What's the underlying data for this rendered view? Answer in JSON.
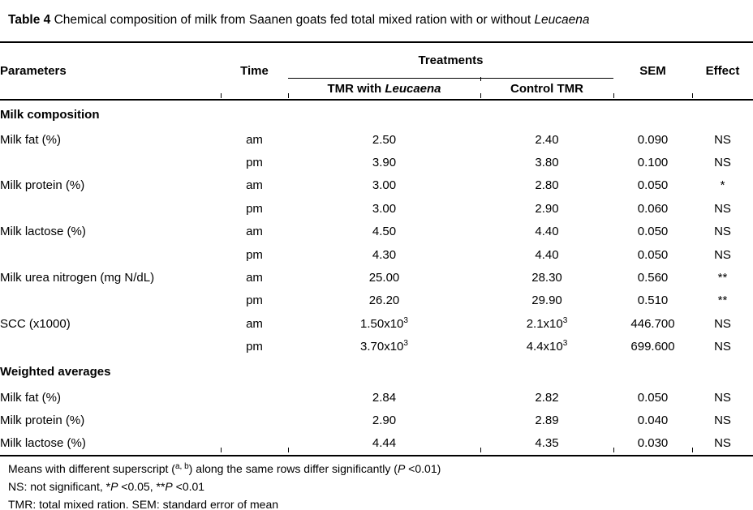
{
  "title": {
    "segments": [
      {
        "t": "Table 4",
        "s": "b"
      },
      {
        "t": " Chemical composition of milk from Saanen goats fed total mixed ration with or without ",
        "s": ""
      },
      {
        "t": "Leucaena",
        "s": "i"
      }
    ]
  },
  "table": {
    "header": {
      "parameters": "Parameters",
      "time": "Time",
      "treatments": "Treatments",
      "treatment1_segments": [
        {
          "t": "TMR with ",
          "s": ""
        },
        {
          "t": "Leucaena",
          "s": "i"
        }
      ],
      "treatment2": "Control TMR",
      "sem": "SEM",
      "effect": "Effect"
    },
    "rows": [
      {
        "type": "section",
        "parameter": "Milk composition"
      },
      {
        "type": "data",
        "parameter": "Milk fat (%)",
        "time": "am",
        "tmr": "2.50",
        "tmr_sup": "",
        "control": "2.40",
        "control_sup": "",
        "sem": "0.090",
        "effect": "NS"
      },
      {
        "type": "data",
        "parameter": "",
        "time": "pm",
        "tmr": "3.90",
        "tmr_sup": "",
        "control": "3.80",
        "control_sup": "",
        "sem": "0.100",
        "effect": "NS"
      },
      {
        "type": "data",
        "parameter": "Milk protein (%)",
        "time": "am",
        "tmr": "3.00",
        "tmr_sup": "",
        "control": "2.80",
        "control_sup": "",
        "sem": "0.050",
        "effect": "*"
      },
      {
        "type": "data",
        "parameter": "",
        "time": "pm",
        "tmr": "3.00",
        "tmr_sup": "",
        "control": "2.90",
        "control_sup": "",
        "sem": "0.060",
        "effect": "NS"
      },
      {
        "type": "data",
        "parameter": "Milk lactose (%)",
        "time": "am",
        "tmr": "4.50",
        "tmr_sup": "",
        "control": "4.40",
        "control_sup": "",
        "sem": "0.050",
        "effect": "NS"
      },
      {
        "type": "data",
        "parameter": "",
        "time": "pm",
        "tmr": "4.30",
        "tmr_sup": "",
        "control": "4.40",
        "control_sup": "",
        "sem": "0.050",
        "effect": "NS"
      },
      {
        "type": "data",
        "parameter": "Milk urea nitrogen (mg N/dL)",
        "time": "am",
        "tmr": "25.00",
        "tmr_sup": "",
        "control": "28.30",
        "control_sup": "",
        "sem": "0.560",
        "effect": "**"
      },
      {
        "type": "data",
        "parameter": "",
        "time": "pm",
        "tmr": "26.20",
        "tmr_sup": "",
        "control": "29.90",
        "control_sup": "",
        "sem": "0.510",
        "effect": "**"
      },
      {
        "type": "data",
        "parameter": "SCC (x1000)",
        "time": "am",
        "tmr": "1.50x10",
        "tmr_sup": "3",
        "control": "2.1x10",
        "control_sup": "3",
        "sem": "446.700",
        "effect": "NS"
      },
      {
        "type": "data",
        "parameter": "",
        "time": "pm",
        "tmr": "3.70x10",
        "tmr_sup": "3",
        "control": "4.4x10",
        "control_sup": "3",
        "sem": "699.600",
        "effect": "NS"
      },
      {
        "type": "section",
        "parameter": "Weighted averages"
      },
      {
        "type": "data",
        "parameter": "Milk fat (%)",
        "time": "",
        "tmr": "2.84",
        "tmr_sup": "",
        "control": "2.82",
        "control_sup": "",
        "sem": "0.050",
        "effect": "NS"
      },
      {
        "type": "data",
        "parameter": "Milk protein (%)",
        "time": "",
        "tmr": "2.90",
        "tmr_sup": "",
        "control": "2.89",
        "control_sup": "",
        "sem": "0.040",
        "effect": "NS"
      },
      {
        "type": "data",
        "parameter": "Milk lactose (%)",
        "time": "",
        "tmr": "4.44",
        "tmr_sup": "",
        "control": "4.35",
        "control_sup": "",
        "sem": "0.030",
        "effect": "NS"
      }
    ]
  },
  "notes": [
    {
      "segments": [
        {
          "t": "Means with different superscript (",
          "s": ""
        },
        {
          "t": "a, b",
          "s": "sup"
        },
        {
          "t": ") along the same rows differ significantly (",
          "s": ""
        },
        {
          "t": "P",
          "s": "i"
        },
        {
          "t": " <0.01)",
          "s": ""
        }
      ]
    },
    {
      "segments": [
        {
          "t": "NS: not significant, *",
          "s": ""
        },
        {
          "t": "P",
          "s": "i"
        },
        {
          "t": " <0.05, **",
          "s": ""
        },
        {
          "t": "P",
          "s": "i"
        },
        {
          "t": " <0.01",
          "s": ""
        }
      ]
    },
    {
      "segments": [
        {
          "t": "TMR: total mixed ration. SEM: standard error of mean",
          "s": ""
        }
      ]
    }
  ]
}
